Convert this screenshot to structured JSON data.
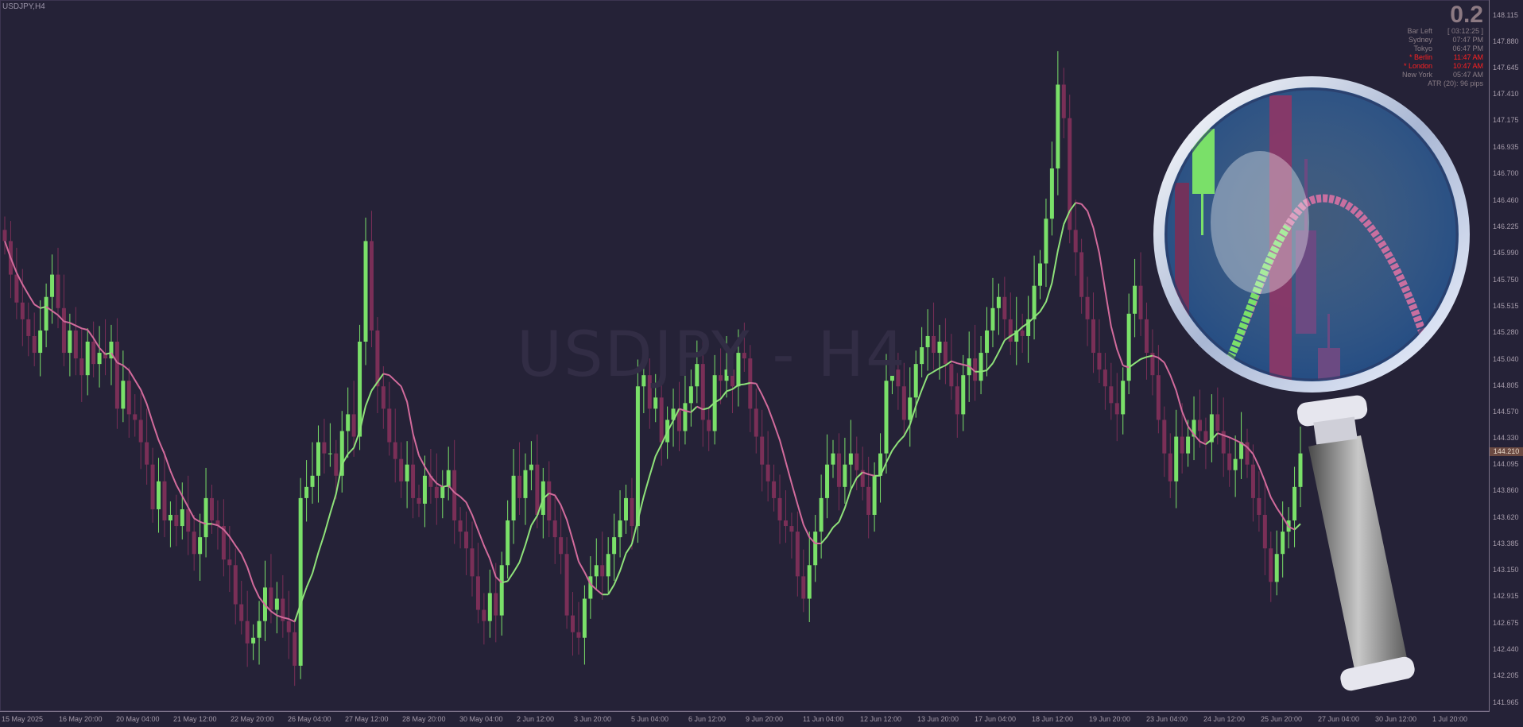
{
  "window": {
    "symbol_label": "USDJPY,H4",
    "watermark": "USDJPY - H4"
  },
  "info_panel": {
    "spread": "0.2",
    "rows": [
      {
        "name": "Bar Left",
        "value": "[ 03:12:25 ]",
        "active": false
      },
      {
        "name": "Sydney",
        "value": "07:47 PM",
        "active": false
      },
      {
        "name": "Tokyo",
        "value": "06:47 PM",
        "active": false
      },
      {
        "name": "* Berlin",
        "value": "11:47 AM",
        "active": true
      },
      {
        "name": "* London",
        "value": "10:47 AM",
        "active": true
      },
      {
        "name": "New York",
        "value": "05:47 AM",
        "active": false
      }
    ],
    "atr": "ATR (20): 96 pips"
  },
  "colors": {
    "background": "#252237",
    "bull": "#7ae069",
    "bear": "#7a2f57",
    "ma_up": "#8fe27a",
    "ma_down": "#d26b9c",
    "current_price_bg": "#6b4a42"
  },
  "price_axis": [
    "148.115",
    "147.880",
    "147.645",
    "147.410",
    "147.175",
    "146.935",
    "146.700",
    "146.460",
    "146.225",
    "145.990",
    "145.750",
    "145.515",
    "145.280",
    "145.040",
    "144.805",
    "144.570",
    "144.330",
    "144.095",
    "143.860",
    "143.620",
    "143.385",
    "143.150",
    "142.915",
    "142.675",
    "142.440",
    "142.205",
    "141.965"
  ],
  "current_price": "144.210",
  "time_axis": [
    "15 May 2025",
    "16 May 20:00",
    "20 May 04:00",
    "21 May 12:00",
    "22 May 20:00",
    "26 May 04:00",
    "27 May 12:00",
    "28 May 20:00",
    "30 May 04:00",
    "2 Jun 12:00",
    "3 Jun 20:00",
    "5 Jun 04:00",
    "6 Jun 12:00",
    "9 Jun 20:00",
    "11 Jun 04:00",
    "12 Jun 12:00",
    "13 Jun 20:00",
    "17 Jun 04:00",
    "18 Jun 12:00",
    "19 Jun 20:00",
    "23 Jun 04:00",
    "24 Jun 12:00",
    "25 Jun 20:00",
    "27 Jun 04:00",
    "30 Jun 12:00",
    "1 Jul 20:00"
  ],
  "chart_data": {
    "type": "candlestick",
    "symbol": "USDJPY",
    "timeframe": "H4",
    "ylim": [
      141.965,
      148.115
    ],
    "closes": [
      146.1,
      145.8,
      145.55,
      145.4,
      145.25,
      145.1,
      145.3,
      145.6,
      145.8,
      145.5,
      145.1,
      145.3,
      145.05,
      144.9,
      145.2,
      145.0,
      145.1,
      145.05,
      145.2,
      144.6,
      144.85,
      144.55,
      144.5,
      144.3,
      144.1,
      143.7,
      143.95,
      143.6,
      143.65,
      143.55,
      143.7,
      143.5,
      143.3,
      143.45,
      143.8,
      143.6,
      143.55,
      143.25,
      143.2,
      142.85,
      142.7,
      142.5,
      142.55,
      142.7,
      143.0,
      142.8,
      142.9,
      142.7,
      142.6,
      142.3,
      143.8,
      143.9,
      144.0,
      144.3,
      144.2,
      144.2,
      144.0,
      144.4,
      144.55,
      144.35,
      145.2,
      146.1,
      145.3,
      144.8,
      144.6,
      144.3,
      144.15,
      143.95,
      144.1,
      143.8,
      143.75,
      144.0,
      143.9,
      143.8,
      143.9,
      144.05,
      143.6,
      143.5,
      143.35,
      143.1,
      142.8,
      142.7,
      142.95,
      142.75,
      143.2,
      143.6,
      144.0,
      143.8,
      144.05,
      144.1,
      143.65,
      143.95,
      143.6,
      143.45,
      143.3,
      142.75,
      142.6,
      142.55,
      142.9,
      143.1,
      143.2,
      143.1,
      143.3,
      143.45,
      143.6,
      143.8,
      143.55,
      144.8,
      144.9,
      144.6,
      144.7,
      144.3,
      144.5,
      144.6,
      144.4,
      144.65,
      144.8,
      145.0,
      144.5,
      144.4,
      144.9,
      144.85,
      144.95,
      144.8,
      145.1,
      145.05,
      144.6,
      144.35,
      144.1,
      143.95,
      143.8,
      143.6,
      143.55,
      143.5,
      143.1,
      142.9,
      143.2,
      143.5,
      143.8,
      144.1,
      144.2,
      143.9,
      144.1,
      144.2,
      144.05,
      143.9,
      143.65,
      144.0,
      144.2,
      144.85,
      144.95,
      144.8,
      144.5,
      144.7,
      145.0,
      145.15,
      145.25,
      145.1,
      145.2,
      145.0,
      144.8,
      144.55,
      144.9,
      145.05,
      144.85,
      145.1,
      145.3,
      145.5,
      145.6,
      145.4,
      145.2,
      145.3,
      145.25,
      145.4,
      145.7,
      145.9,
      146.3,
      146.75,
      147.5,
      147.2,
      146.2,
      146.0,
      145.6,
      145.4,
      145.1,
      144.95,
      144.8,
      144.65,
      144.55,
      144.85,
      145.45,
      145.7,
      145.4,
      145.1,
      144.9,
      144.5,
      144.2,
      143.95,
      144.35,
      144.2,
      144.35,
      144.5,
      144.4,
      144.3,
      144.55,
      144.4,
      144.2,
      144.05,
      144.15,
      144.3,
      144.1,
      143.8,
      143.65,
      143.35,
      143.05,
      143.3,
      143.5,
      143.6,
      143.9,
      144.2
    ]
  }
}
